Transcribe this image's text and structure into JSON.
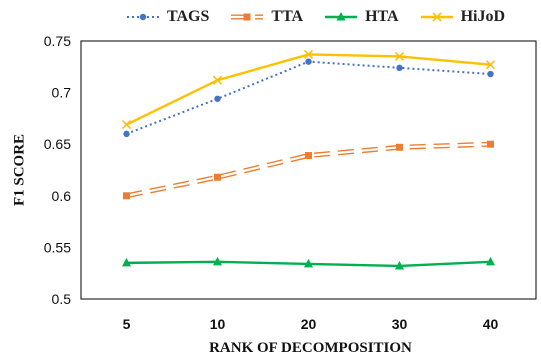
{
  "chart_data": {
    "type": "line",
    "title": "",
    "xlabel": "RANK OF DECOMPOSITION",
    "ylabel": "F1 SCORE",
    "categories": [
      "5",
      "10",
      "20",
      "30",
      "40"
    ],
    "yticks": [
      "0.5",
      "0.55",
      "0.6",
      "0.65",
      "0.7",
      "0.75"
    ],
    "ylim": [
      0.5,
      0.75
    ],
    "grid": false,
    "legend_position": "top",
    "series": [
      {
        "name": "TAGS",
        "values": [
          0.66,
          0.694,
          0.73,
          0.724,
          0.718
        ],
        "color": "#4472C4",
        "style": "dotted",
        "marker": "circle"
      },
      {
        "name": "TTA",
        "values": [
          0.6,
          0.618,
          0.639,
          0.647,
          0.65
        ],
        "color": "#ED7D31",
        "style": "double-dashed",
        "marker": "square"
      },
      {
        "name": "HTA",
        "values": [
          0.535,
          0.536,
          0.534,
          0.532,
          0.536
        ],
        "color": "#00B050",
        "style": "solid",
        "marker": "triangle"
      },
      {
        "name": "HiJoD",
        "values": [
          0.669,
          0.712,
          0.737,
          0.735,
          0.727
        ],
        "color": "#FFC000",
        "style": "solid",
        "marker": "x"
      }
    ]
  }
}
